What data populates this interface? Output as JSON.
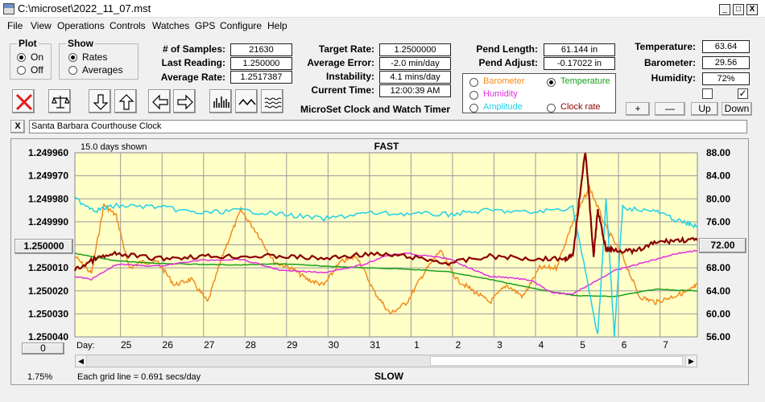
{
  "window": {
    "title": "C:\\microset\\2022_11_07.mst",
    "controls": [
      "_",
      "□",
      "X"
    ]
  },
  "menu": [
    "File",
    "View",
    "Operations",
    "Controls",
    "Watches",
    "GPS",
    "Configure",
    "Help"
  ],
  "plot": {
    "label": "Plot",
    "on": "On",
    "off": "Off",
    "selected": "On"
  },
  "show": {
    "label": "Show",
    "rates": "Rates",
    "averages": "Averages",
    "selected": "Rates"
  },
  "stats": {
    "samples_label": "# of Samples:",
    "samples": "21630",
    "last_reading_label": "Last Reading:",
    "last_reading": "1.250000",
    "average_rate_label": "Average Rate:",
    "average_rate": "1.2517387",
    "target_rate_label": "Target Rate:",
    "target_rate": "1.2500000",
    "average_error_label": "Average Error:",
    "average_error": "-2.0 min/day",
    "instability_label": "Instability:",
    "instability": "4.1 mins/day",
    "current_time_label": "Current Time:",
    "current_time": "12:00:39 AM",
    "pend_length_label": "Pend Length:",
    "pend_length": "61.144 in",
    "pend_adjust_label": "Pend Adjust:",
    "pend_adjust": "-0.17022 in",
    "temperature_label": "Temperature:",
    "temperature": "63.64",
    "barometer_label": "Barometer:",
    "barometer": "29.56",
    "humidity_label": "Humidity:",
    "humidity": "72%"
  },
  "app_caption": "MicroSet Clock and Watch Timer",
  "overlay": {
    "options": [
      {
        "label": "Barometer",
        "color": "#f08c1e",
        "selected": false
      },
      {
        "label": "Temperature",
        "color": "#1aa01a",
        "selected": true
      },
      {
        "label": "Humidity",
        "color": "#e030e0",
        "selected": false
      },
      {
        "label": "Amplitude",
        "color": "#20d0e8",
        "selected": false
      },
      {
        "label": "Clock rate",
        "color": "#8b0000",
        "selected": false
      }
    ]
  },
  "scale_buttons": {
    "plus": "+",
    "minus": "—",
    "up": "Up",
    "down": "Down"
  },
  "checkboxes": {
    "left": false,
    "right": true,
    "right_mark": "✓"
  },
  "watch_name": "Santa Barbara Courthouse Clock",
  "close_button": "X",
  "chart_data": {
    "type": "line",
    "top_left_label": "15.0 days shown",
    "top_center_label": "FAST",
    "bottom_center_label": "SLOW",
    "grid_note": "Each grid line = 0.691 secs/day",
    "percent_label": "1.75%",
    "left_button": "1.250000",
    "right_button": "72.00",
    "bottom_left_button": "0",
    "day_label": "Day:",
    "days": [
      "25",
      "26",
      "27",
      "28",
      "29",
      "30",
      "31",
      "1",
      "2",
      "3",
      "4",
      "5",
      "6",
      "7"
    ],
    "y_left_ticks": [
      "1.249960",
      "1.249970",
      "1.249980",
      "1.249990",
      "1.250000",
      "1.250010",
      "1.250020",
      "1.250030",
      "1.250040"
    ],
    "y_right_ticks": [
      "88.00",
      "84.00",
      "80.00",
      "76.00",
      "72.00",
      "68.00",
      "64.00",
      "60.00",
      "56.00"
    ],
    "ylim_left": [
      1.24996,
      1.25004
    ],
    "ylim_right": [
      56,
      88
    ],
    "x_range_days": [
      0,
      15
    ],
    "series": [
      {
        "name": "Barometer",
        "color": "#f08c1e",
        "axis": "right",
        "x": [
          0,
          0.4,
          0.7,
          1.0,
          1.3,
          1.6,
          2.0,
          2.4,
          2.8,
          3.2,
          3.6,
          4.0,
          4.4,
          4.8,
          5.2,
          5.6,
          6.0,
          6.4,
          6.8,
          7.2,
          7.6,
          8.0,
          8.4,
          8.8,
          9.2,
          9.6,
          10.0,
          10.4,
          10.8,
          11.2,
          11.6,
          12.0,
          12.4,
          12.8,
          13.2,
          13.6,
          14.0,
          14.4,
          14.8,
          15.0
        ],
        "y": [
          70,
          67,
          79,
          77,
          68,
          69,
          69,
          65,
          66,
          62,
          71,
          78,
          74,
          69,
          68,
          66,
          65,
          69,
          70,
          64,
          60,
          62,
          67,
          71,
          66,
          64,
          62,
          65,
          63,
          68,
          68,
          76,
          82,
          75,
          70,
          63,
          62,
          63,
          64,
          65
        ]
      },
      {
        "name": "Temperature",
        "color": "#1aa01a",
        "axis": "right",
        "x": [
          0,
          1,
          2,
          3,
          4,
          5,
          6,
          7,
          8,
          9,
          10,
          11,
          12,
          13,
          14,
          15
        ],
        "y": [
          70.5,
          69.2,
          68.8,
          68.6,
          68.5,
          68.7,
          68.3,
          68.0,
          67.8,
          67.3,
          66.0,
          64.5,
          63.2,
          63.0,
          64.3,
          64.0
        ]
      },
      {
        "name": "Humidity",
        "color": "#e030e0",
        "axis": "right",
        "x": [
          0,
          0.4,
          1.0,
          2,
          3,
          4,
          5,
          6,
          7,
          7.5,
          8,
          9,
          9.5,
          10,
          10.5,
          11,
          11.5,
          12,
          13,
          13.5,
          14,
          14.5,
          15
        ],
        "y": [
          66.5,
          66.0,
          68.6,
          68.3,
          69.3,
          69.5,
          67.5,
          67.2,
          68.6,
          70.2,
          70.5,
          69.6,
          68.0,
          66.5,
          66.3,
          65.8,
          63.6,
          63.5,
          67.5,
          68.5,
          69.5,
          70.5,
          71.0
        ]
      },
      {
        "name": "Amplitude",
        "color": "#20d0e8",
        "axis": "right",
        "x": [
          0,
          0.5,
          1.0,
          2,
          3,
          4,
          5,
          6,
          7,
          8,
          9,
          10,
          11,
          12,
          12.6,
          12.8,
          13.0,
          13.2,
          14,
          14.6,
          15
        ],
        "y": [
          80.0,
          78.0,
          78.8,
          78.6,
          77.5,
          78.0,
          77.3,
          76.5,
          77.5,
          77.4,
          77.3,
          78.0,
          77.6,
          78.5,
          56.2,
          79.8,
          56.2,
          78.5,
          77.8,
          76.0,
          75.2
        ]
      },
      {
        "name": "Clock rate",
        "color": "#8b0000",
        "axis": "left",
        "x": [
          0,
          0.5,
          1.0,
          2,
          3,
          4,
          5,
          6,
          7,
          8,
          9,
          10,
          11,
          11.8,
          12.0,
          12.3,
          12.5,
          12.6,
          12.8,
          13.0,
          13.5,
          14,
          14.5,
          15
        ],
        "y": [
          1.250011,
          1.250006,
          1.250004,
          1.250006,
          1.250005,
          1.250005,
          1.250005,
          1.250006,
          1.250004,
          1.250005,
          1.250008,
          1.250005,
          1.250006,
          1.250006,
          1.250005,
          1.249958,
          1.250005,
          1.249985,
          1.250002,
          1.250002,
          1.250003,
          1.249999,
          1.249998,
          1.249998
        ]
      }
    ]
  }
}
